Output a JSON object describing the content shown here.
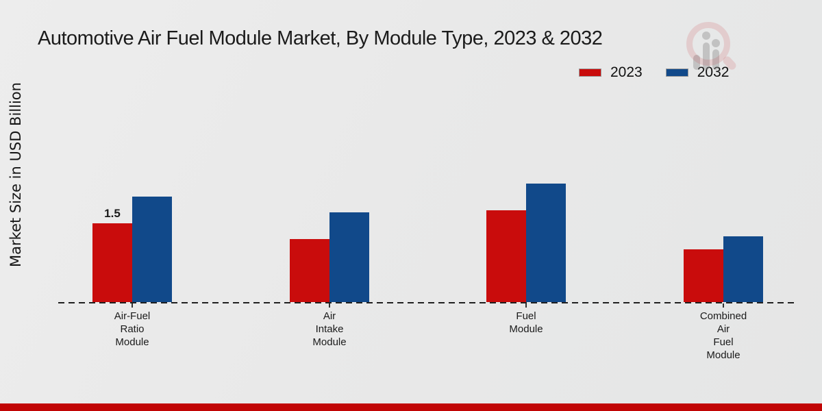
{
  "title": "Automotive Air Fuel Module Market, By Module Type, 2023 & 2032",
  "y_axis_label": "Market Size in USD Billion",
  "legend": {
    "items": [
      {
        "label": "2023",
        "color": "#c90c0c"
      },
      {
        "label": "2032",
        "color": "#11498a"
      }
    ],
    "position": "top-right"
  },
  "watermark": "magnifier-bar-chart-logo",
  "footer_accent_color": "#c10505",
  "chart_data": {
    "type": "bar",
    "title": "Automotive Air Fuel Module Market, By Module Type, 2023 & 2032",
    "xlabel": "",
    "ylabel": "Market Size in USD Billion",
    "ylim": [
      0,
      2.6
    ],
    "grid": false,
    "legend_position": "top-right",
    "baseline_style": "dashed",
    "categories": [
      "Air-Fuel Ratio Module",
      "Air Intake Module",
      "Fuel Module",
      "Combined Air Fuel Module"
    ],
    "categories_multiline": [
      [
        "Air-Fuel",
        "Ratio",
        "Module"
      ],
      [
        "Air",
        "Intake",
        "Module"
      ],
      [
        "Fuel",
        "Module"
      ],
      [
        "Combined",
        "Air",
        "Fuel",
        "Module"
      ]
    ],
    "series": [
      {
        "name": "2023",
        "color": "#c90c0c",
        "values": [
          1.5,
          1.2,
          1.75,
          1.0
        ]
      },
      {
        "name": "2032",
        "color": "#11498a",
        "values": [
          2.0,
          1.7,
          2.25,
          1.25
        ]
      }
    ],
    "bar_labels": [
      {
        "series": "2023",
        "category_index": 0,
        "text": "1.5"
      }
    ]
  }
}
